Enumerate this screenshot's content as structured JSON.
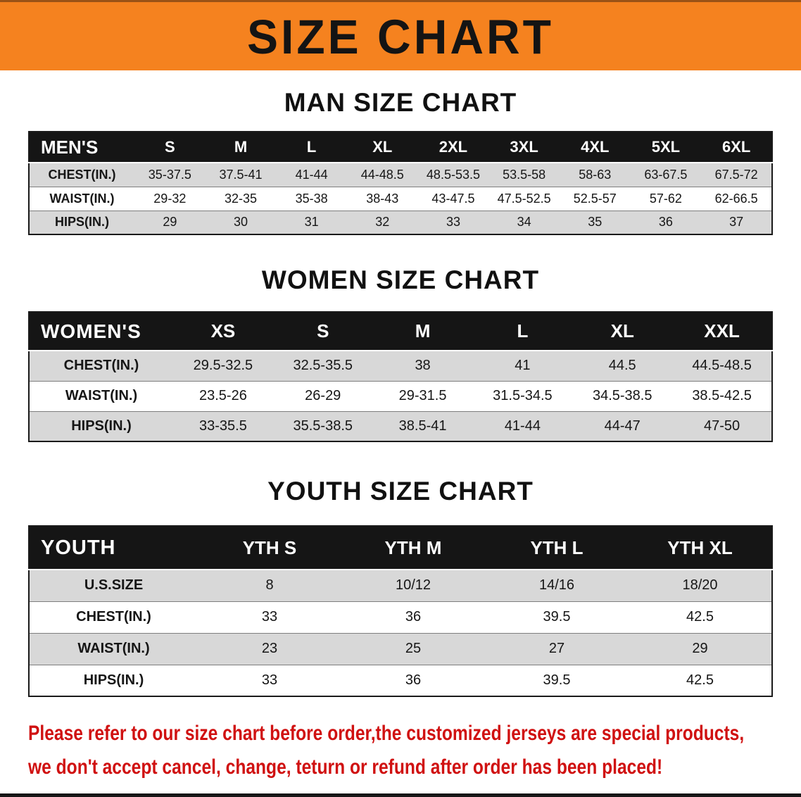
{
  "banner": {
    "title": "SIZE CHART"
  },
  "sections": [
    {
      "heading": "MAN SIZE CHART",
      "table": {
        "header": [
          "MEN'S",
          "S",
          "M",
          "L",
          "XL",
          "2XL",
          "3XL",
          "4XL",
          "5XL",
          "6XL"
        ],
        "rows": [
          [
            "CHEST(IN.)",
            "35-37.5",
            "37.5-41",
            "41-44",
            "44-48.5",
            "48.5-53.5",
            "53.5-58",
            "58-63",
            "63-67.5",
            "67.5-72"
          ],
          [
            "WAIST(IN.)",
            "29-32",
            "32-35",
            "35-38",
            "38-43",
            "43-47.5",
            "47.5-52.5",
            "52.5-57",
            "57-62",
            "62-66.5"
          ],
          [
            "HIPS(IN.)",
            "29",
            "30",
            "31",
            "32",
            "33",
            "34",
            "35",
            "36",
            "37"
          ]
        ]
      }
    },
    {
      "heading": "WOMEN SIZE CHART",
      "table": {
        "header": [
          "WOMEN'S",
          "XS",
          "S",
          "M",
          "L",
          "XL",
          "XXL"
        ],
        "rows": [
          [
            "CHEST(IN.)",
            "29.5-32.5",
            "32.5-35.5",
            "38",
            "41",
            "44.5",
            "44.5-48.5"
          ],
          [
            "WAIST(IN.)",
            "23.5-26",
            "26-29",
            "29-31.5",
            "31.5-34.5",
            "34.5-38.5",
            "38.5-42.5"
          ],
          [
            "HIPS(IN.)",
            "33-35.5",
            "35.5-38.5",
            "38.5-41",
            "41-44",
            "44-47",
            "47-50"
          ]
        ]
      }
    },
    {
      "heading": "YOUTH SIZE CHART",
      "table": {
        "header": [
          "YOUTH",
          "YTH S",
          "YTH M",
          "YTH L",
          "YTH XL"
        ],
        "rows": [
          [
            "U.S.SIZE",
            "8",
            "10/12",
            "14/16",
            "18/20"
          ],
          [
            "CHEST(IN.)",
            "33",
            "36",
            "39.5",
            "42.5"
          ],
          [
            "WAIST(IN.)",
            "23",
            "25",
            "27",
            "29"
          ],
          [
            "HIPS(IN.)",
            "33",
            "36",
            "39.5",
            "42.5"
          ]
        ]
      }
    }
  ],
  "footer_note": {
    "line1": "Please refer to our size chart before order,the customized jerseys are special products,",
    "line2": "we don't accept cancel, change, teturn or refund after order has been placed!"
  },
  "colors": {
    "banner_orange": "#f5821f",
    "table_header_black": "#151515",
    "row_stripe_gray": "#d8d8d8",
    "note_red": "#d01111",
    "bottom_rule_black": "#161616"
  }
}
